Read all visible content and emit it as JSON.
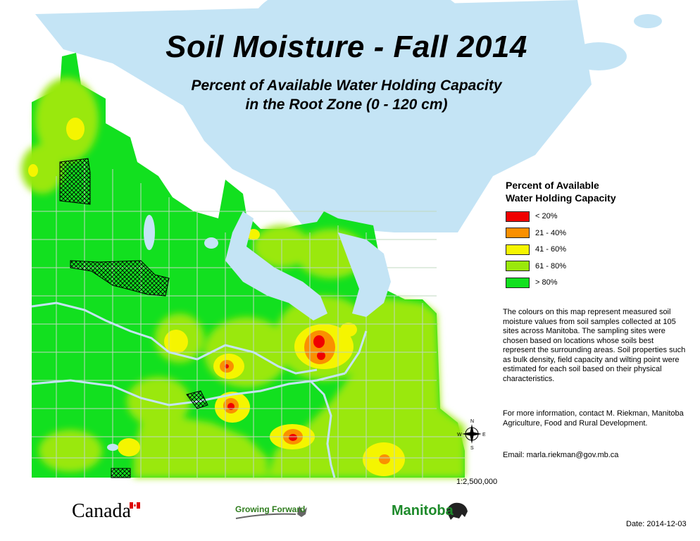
{
  "map": {
    "title": "Soil Moisture - Fall 2014",
    "subtitle_line1": "Percent of Available Water Holding Capacity",
    "subtitle_line2": "in the Root Zone (0 - 120 cm)",
    "scale": "1:2,500,000",
    "date": "Date: 2014-12-03",
    "colors": {
      "water": "#c4e4f5",
      "over_80": "#12e01f",
      "p61_80": "#9ae80c",
      "p41_60": "#f5f500",
      "p21_40": "#fa9000",
      "under_20": "#f00000",
      "grid": "#c0d8c0"
    }
  },
  "legend": {
    "title_line1": "Percent of Available",
    "title_line2": "Water Holding Capacity",
    "items": [
      {
        "label": "< 20%",
        "color": "#f00000"
      },
      {
        "label": "21 - 40%",
        "color": "#fa9000"
      },
      {
        "label": "41 - 60%",
        "color": "#f5f500"
      },
      {
        "label": "61 - 80%",
        "color": "#9ae80c"
      },
      {
        "label": "> 80%",
        "color": "#12e01f"
      }
    ]
  },
  "description": {
    "para1": "The colours on this map represent measured soil moisture values from soil samples collected at 105 sites across Manitoba. The sampling sites were chosen based on locations whose soils best represent the surrounding areas. Soil properties such as bulk density, field capacity and wilting point were estimated for each soil based on their physical characteristics.",
    "para2": "For more information, contact M. Riekman, Manitoba Agriculture, Food and Rural Development.",
    "email": "Email: marla.riekman@gov.mb.ca"
  },
  "logos": {
    "canada": "Canada",
    "growing_forward": "Growing Forward",
    "manitoba": "Manitoba"
  }
}
